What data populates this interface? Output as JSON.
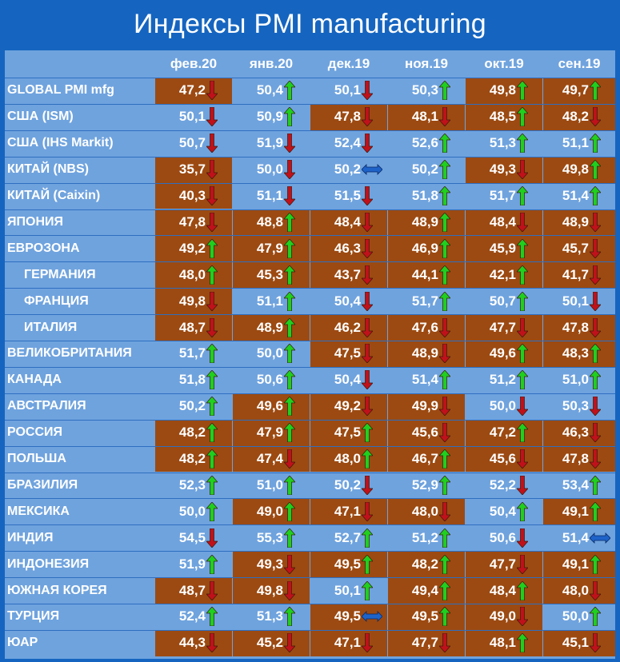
{
  "title": "Индексы PMI manufacturing",
  "colors": {
    "background": "#1565c0",
    "table": "#6fa3de",
    "contraction_cell": "#9c4a12",
    "up_arrow": "#1fd01f",
    "down_arrow": "#c0111b",
    "flat_arrow": "#1e63c8"
  },
  "chart_data": {
    "type": "table",
    "columns": [
      "фев.20",
      "янв.20",
      "дек.19",
      "ноя.19",
      "окт.19",
      "сен.19"
    ],
    "rows": [
      {
        "label": "GLOBAL PMI mfg",
        "indent": false,
        "values": [
          "47,2",
          "50,4",
          "50,1",
          "50,3",
          "49,8",
          "49,7"
        ],
        "dirs": [
          "down",
          "up",
          "down",
          "up",
          "up",
          "up"
        ],
        "brown": [
          true,
          false,
          false,
          false,
          true,
          true
        ]
      },
      {
        "label": "США (ISM)",
        "indent": false,
        "values": [
          "50,1",
          "50,9",
          "47,8",
          "48,1",
          "48,5",
          "48,2"
        ],
        "dirs": [
          "down",
          "up",
          "down",
          "down",
          "up",
          "down"
        ],
        "brown": [
          false,
          false,
          true,
          true,
          true,
          true
        ]
      },
      {
        "label": "США (IHS Markit)",
        "indent": false,
        "values": [
          "50,7",
          "51,9",
          "52,4",
          "52,6",
          "51,3",
          "51,1"
        ],
        "dirs": [
          "down",
          "down",
          "down",
          "up",
          "up",
          "up"
        ],
        "brown": [
          false,
          false,
          false,
          false,
          false,
          false
        ]
      },
      {
        "label": "КИТАЙ (NBS)",
        "indent": false,
        "values": [
          "35,7",
          "50,0",
          "50,2",
          "50,2",
          "49,3",
          "49,8"
        ],
        "dirs": [
          "down",
          "down",
          "flat",
          "up",
          "down",
          "up"
        ],
        "brown": [
          true,
          false,
          false,
          false,
          true,
          true
        ]
      },
      {
        "label": "КИТАЙ (Caixin)",
        "indent": false,
        "values": [
          "40,3",
          "51,1",
          "51,5",
          "51,8",
          "51,7",
          "51,4"
        ],
        "dirs": [
          "down",
          "down",
          "down",
          "up",
          "up",
          "up"
        ],
        "brown": [
          true,
          false,
          false,
          false,
          false,
          false
        ]
      },
      {
        "label": "ЯПОНИЯ",
        "indent": false,
        "values": [
          "47,8",
          "48,8",
          "48,4",
          "48,9",
          "48,4",
          "48,9"
        ],
        "dirs": [
          "down",
          "up",
          "down",
          "up",
          "down",
          "down"
        ],
        "brown": [
          true,
          true,
          true,
          true,
          true,
          true
        ]
      },
      {
        "label": "ЕВРОЗОНА",
        "indent": false,
        "values": [
          "49,2",
          "47,9",
          "46,3",
          "46,9",
          "45,9",
          "45,7"
        ],
        "dirs": [
          "up",
          "up",
          "down",
          "up",
          "up",
          "down"
        ],
        "brown": [
          true,
          true,
          true,
          true,
          true,
          true
        ]
      },
      {
        "label": "ГЕРМАНИЯ",
        "indent": true,
        "values": [
          "48,0",
          "45,3",
          "43,7",
          "44,1",
          "42,1",
          "41,7"
        ],
        "dirs": [
          "up",
          "up",
          "down",
          "up",
          "up",
          "down"
        ],
        "brown": [
          true,
          true,
          true,
          true,
          true,
          true
        ]
      },
      {
        "label": "ФРАНЦИЯ",
        "indent": true,
        "values": [
          "49,8",
          "51,1",
          "50,4",
          "51,7",
          "50,7",
          "50,1"
        ],
        "dirs": [
          "down",
          "up",
          "down",
          "up",
          "up",
          "down"
        ],
        "brown": [
          true,
          false,
          false,
          false,
          false,
          false
        ]
      },
      {
        "label": "ИТАЛИЯ",
        "indent": true,
        "values": [
          "48,7",
          "48,9",
          "46,2",
          "47,6",
          "47,7",
          "47,8"
        ],
        "dirs": [
          "down",
          "up",
          "down",
          "down",
          "down",
          "down"
        ],
        "brown": [
          true,
          true,
          true,
          true,
          true,
          true
        ]
      },
      {
        "label": "ВЕЛИКОБРИТАНИЯ",
        "indent": false,
        "values": [
          "51,7",
          "50,0",
          "47,5",
          "48,9",
          "49,6",
          "48,3"
        ],
        "dirs": [
          "up",
          "up",
          "down",
          "down",
          "up",
          "up"
        ],
        "brown": [
          false,
          false,
          true,
          true,
          true,
          true
        ]
      },
      {
        "label": "КАНАДА",
        "indent": false,
        "values": [
          "51,8",
          "50,6",
          "50,4",
          "51,4",
          "51,2",
          "51,0"
        ],
        "dirs": [
          "up",
          "up",
          "down",
          "up",
          "up",
          "up"
        ],
        "brown": [
          false,
          false,
          false,
          false,
          false,
          false
        ]
      },
      {
        "label": "АВСТРАЛИЯ",
        "indent": false,
        "values": [
          "50,2",
          "49,6",
          "49,2",
          "49,9",
          "50,0",
          "50,3"
        ],
        "dirs": [
          "up",
          "up",
          "down",
          "down",
          "down",
          "down"
        ],
        "brown": [
          false,
          true,
          true,
          true,
          false,
          false
        ]
      },
      {
        "label": "РОССИЯ",
        "indent": false,
        "values": [
          "48,2",
          "47,9",
          "47,5",
          "45,6",
          "47,2",
          "46,3"
        ],
        "dirs": [
          "up",
          "up",
          "up",
          "down",
          "up",
          "down"
        ],
        "brown": [
          true,
          true,
          true,
          true,
          true,
          true
        ]
      },
      {
        "label": "ПОЛЬША",
        "indent": false,
        "values": [
          "48,2",
          "47,4",
          "48,0",
          "46,7",
          "45,6",
          "47,8"
        ],
        "dirs": [
          "up",
          "down",
          "up",
          "up",
          "down",
          "down"
        ],
        "brown": [
          true,
          true,
          true,
          true,
          true,
          true
        ]
      },
      {
        "label": "БРАЗИЛИЯ",
        "indent": false,
        "values": [
          "52,3",
          "51,0",
          "50,2",
          "52,9",
          "52,2",
          "53,4"
        ],
        "dirs": [
          "up",
          "up",
          "down",
          "up",
          "down",
          "up"
        ],
        "brown": [
          false,
          false,
          false,
          false,
          false,
          false
        ]
      },
      {
        "label": "МЕКСИКА",
        "indent": false,
        "values": [
          "50,0",
          "49,0",
          "47,1",
          "48,0",
          "50,4",
          "49,1"
        ],
        "dirs": [
          "up",
          "up",
          "down",
          "down",
          "up",
          "up"
        ],
        "brown": [
          false,
          true,
          true,
          true,
          false,
          true
        ]
      },
      {
        "label": "ИНДИЯ",
        "indent": false,
        "values": [
          "54,5",
          "55,3",
          "52,7",
          "51,2",
          "50,6",
          "51,4"
        ],
        "dirs": [
          "down",
          "up",
          "up",
          "up",
          "down",
          "flat"
        ],
        "brown": [
          false,
          false,
          false,
          false,
          false,
          false
        ]
      },
      {
        "label": "ИНДОНЕЗИЯ",
        "indent": false,
        "values": [
          "51,9",
          "49,3",
          "49,5",
          "48,2",
          "47,7",
          "49,1"
        ],
        "dirs": [
          "up",
          "down",
          "up",
          "up",
          "down",
          "up"
        ],
        "brown": [
          false,
          true,
          true,
          true,
          true,
          true
        ]
      },
      {
        "label": "ЮЖНАЯ КОРЕЯ",
        "indent": false,
        "values": [
          "48,7",
          "49,8",
          "50,1",
          "49,4",
          "48,4",
          "48,0"
        ],
        "dirs": [
          "down",
          "down",
          "up",
          "up",
          "up",
          "down"
        ],
        "brown": [
          true,
          true,
          false,
          true,
          true,
          true
        ]
      },
      {
        "label": "ТУРЦИЯ",
        "indent": false,
        "values": [
          "52,4",
          "51,3",
          "49,5",
          "49,5",
          "49,0",
          "50,0"
        ],
        "dirs": [
          "up",
          "up",
          "flat",
          "up",
          "down",
          "up"
        ],
        "brown": [
          false,
          false,
          true,
          true,
          true,
          false
        ]
      },
      {
        "label": "ЮАР",
        "indent": false,
        "values": [
          "44,3",
          "45,2",
          "47,1",
          "47,7",
          "48,1",
          "45,1"
        ],
        "dirs": [
          "down",
          "down",
          "down",
          "down",
          "up",
          "down"
        ],
        "brown": [
          true,
          true,
          true,
          true,
          true,
          true
        ]
      }
    ]
  }
}
